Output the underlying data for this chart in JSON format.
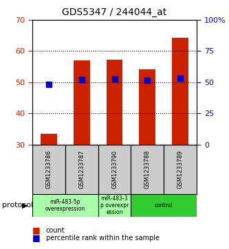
{
  "title": "GDS5347 / 244044_at",
  "samples": [
    "GSM1233786",
    "GSM1233787",
    "GSM1233790",
    "GSM1233788",
    "GSM1233789"
  ],
  "count_values": [
    33.5,
    57.0,
    57.3,
    54.2,
    64.2
  ],
  "percentile_values": [
    48.0,
    52.0,
    52.5,
    51.5,
    53.0
  ],
  "ylim_left": [
    30,
    70
  ],
  "ylim_right": [
    0,
    100
  ],
  "yticks_left": [
    30,
    40,
    50,
    60,
    70
  ],
  "yticks_right": [
    0,
    25,
    50,
    75,
    100
  ],
  "ytick_labels_right": [
    "0",
    "25",
    "50",
    "75",
    "100%"
  ],
  "bar_color": "#cc2200",
  "dot_color": "#0000cc",
  "protocol_groups": [
    {
      "label": "miR-483-5p\noverexpression",
      "samples": [
        0,
        1
      ],
      "color": "#aaffaa"
    },
    {
      "label": "miR-483-3\np overexpr\nession",
      "samples": [
        2
      ],
      "color": "#aaffaa"
    },
    {
      "label": "control",
      "samples": [
        3,
        4
      ],
      "color": "#33cc33"
    }
  ],
  "legend_count_label": "count",
  "legend_percentile_label": "percentile rank within the sample",
  "protocol_label": "protocol",
  "left_axis_color": "#cc2200",
  "right_axis_color": "#0000cc",
  "sample_label_bg": "#cccccc",
  "bar_bottom": 30,
  "bar_width": 0.5,
  "dot_size": 35
}
